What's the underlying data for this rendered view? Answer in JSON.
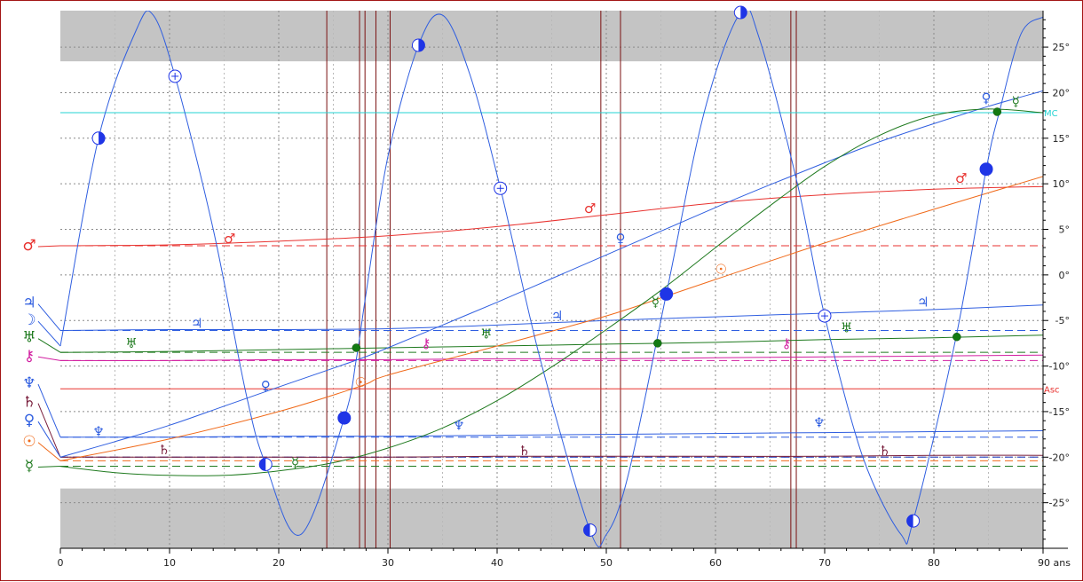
{
  "chart_data": {
    "type": "line",
    "x_unit_label": "ans",
    "xlim": [
      0,
      90
    ],
    "ylim": [
      -30,
      29
    ],
    "x_ticks": [
      0,
      10,
      20,
      30,
      40,
      50,
      60,
      70,
      80,
      90
    ],
    "x_tick_labels": [
      "0",
      "10",
      "20",
      "30",
      "40",
      "50",
      "60",
      "70",
      "80",
      "90 ans"
    ],
    "y_ticks": [
      25,
      20,
      15,
      10,
      5,
      0,
      -5,
      -10,
      -15,
      -20,
      -25
    ],
    "y_tick_labels": [
      "25°",
      "20°",
      "15°",
      "10°",
      "5°",
      "0°",
      "-5°",
      "-10°",
      "-15°",
      "-20°",
      "-25°"
    ],
    "grid": true,
    "shaded_bands": [
      [
        23.44,
        29
      ],
      [
        -30,
        -23.44
      ]
    ],
    "vertical_markers": [
      24.4,
      27.4,
      27.9,
      28.9,
      30.2,
      49.5,
      51.3,
      66.9,
      67.4
    ],
    "reference_lines": [
      {
        "label": "MC",
        "y": 17.8,
        "color": "#26d3d3"
      },
      {
        "label": "Asc",
        "y": -12.5,
        "color": "#e8322f"
      }
    ],
    "left_glyphs": [
      {
        "glyph": "♂",
        "y": 3.3,
        "color": "#e8322f"
      },
      {
        "glyph": "♃",
        "y": -3.0,
        "color": "#2f5ee0"
      },
      {
        "glyph": "☽",
        "y": -4.9,
        "color": "#2f5ee0"
      },
      {
        "glyph": "♅",
        "y": -6.8,
        "color": "#1f7a1f"
      },
      {
        "glyph": "⚷",
        "y": -8.8,
        "color": "#d11fa0"
      },
      {
        "glyph": "♆",
        "y": -11.8,
        "color": "#2f5ee0"
      },
      {
        "glyph": "♄",
        "y": -13.9,
        "color": "#7a1f3d"
      },
      {
        "glyph": "♀",
        "y": -15.9,
        "color": "#2f5ee0"
      },
      {
        "glyph": "☉",
        "y": -18.2,
        "color": "#f06a1a"
      },
      {
        "glyph": "☿",
        "y": -20.9,
        "color": "#1f7a1f"
      }
    ],
    "series": [
      {
        "glyph": "☽",
        "color": "#2f5ee0",
        "type": "lunar-progression",
        "x": [
          0,
          3.5,
          7,
          8.5,
          10.5,
          14,
          17,
          18.8,
          22,
          26,
          27.1,
          28,
          30,
          32.8,
          35,
          37.5,
          40.3,
          44,
          48.5,
          50,
          52,
          55.5,
          59,
          62.3,
          64,
          67.5,
          70,
          73.5,
          77,
          78.1,
          82,
          84.8,
          86,
          88,
          90
        ],
        "y": [
          -7.8,
          15.0,
          27.0,
          28.5,
          21.8,
          5.0,
          -13.0,
          -20.8,
          -28.5,
          -15.7,
          -9.3,
          -2.0,
          13.0,
          25.2,
          28.5,
          22.0,
          9.5,
          -9.5,
          -28.0,
          -28.5,
          -22.0,
          -2.1,
          18.0,
          28.8,
          26.0,
          10.0,
          -4.5,
          -20.0,
          -28.5,
          -27.0,
          -7.0,
          11.6,
          17.9,
          26.5,
          28.3
        ]
      },
      {
        "glyph": "♂",
        "color": "#e8322f",
        "x": [
          0,
          10,
          20,
          30,
          40,
          50,
          60,
          70,
          80,
          90
        ],
        "y": [
          3.2,
          3.3,
          3.7,
          4.3,
          5.3,
          6.6,
          7.9,
          8.8,
          9.4,
          9.7
        ],
        "natal": 3.2
      },
      {
        "glyph": "♃",
        "color": "#2f5ee0",
        "x": [
          0,
          10,
          20,
          30,
          40,
          50,
          60,
          70,
          80,
          90
        ],
        "y": [
          -6.1,
          -6.0,
          -6.0,
          -5.9,
          -5.5,
          -5.0,
          -4.6,
          -4.2,
          -3.8,
          -3.3
        ],
        "natal": -6.1
      },
      {
        "glyph": "♅",
        "color": "#1f7a1f",
        "x": [
          0,
          10,
          20,
          30,
          40,
          50,
          60,
          70,
          80,
          90
        ],
        "y": [
          -8.5,
          -8.4,
          -8.2,
          -8.0,
          -7.8,
          -7.6,
          -7.4,
          -7.1,
          -6.9,
          -6.6
        ],
        "natal": -8.5
      },
      {
        "glyph": "⚷",
        "color": "#d11fa0",
        "x": [
          0,
          10,
          20,
          30,
          40,
          50,
          60,
          70,
          80,
          90
        ],
        "y": [
          -9.4,
          -9.4,
          -9.3,
          -9.3,
          -9.2,
          -9.2,
          -9.1,
          -9.0,
          -8.9,
          -8.8
        ],
        "natal": -9.4
      },
      {
        "glyph": "♆",
        "color": "#2f5ee0",
        "x": [
          0,
          10,
          20,
          30,
          40,
          50,
          60,
          70,
          80,
          90
        ],
        "y": [
          -17.8,
          -17.8,
          -17.7,
          -17.7,
          -17.6,
          -17.5,
          -17.4,
          -17.3,
          -17.2,
          -17.1
        ],
        "natal": -17.8
      },
      {
        "glyph": "♄",
        "color": "#7a1f3d",
        "x": [
          0,
          10,
          20,
          30,
          40,
          50,
          60,
          70,
          80,
          90
        ],
        "y": [
          -20.0,
          -20.0,
          -20.0,
          -20.0,
          -19.9,
          -19.9,
          -19.9,
          -19.9,
          -19.8,
          -19.8
        ],
        "natal": -20.0
      },
      {
        "glyph": "♀",
        "color": "#2f5ee0",
        "x": [
          0,
          5,
          10,
          15,
          20,
          27,
          30,
          35,
          40,
          45,
          50,
          55,
          60,
          65,
          70,
          75,
          80,
          85,
          90
        ],
        "y": [
          -20.0,
          -18.3,
          -16.5,
          -14.4,
          -12.3,
          -9.4,
          -8.0,
          -5.5,
          -3.0,
          -0.4,
          2.2,
          4.8,
          7.4,
          9.9,
          12.3,
          14.6,
          16.6,
          18.5,
          20.2
        ],
        "natal": -20.0
      },
      {
        "glyph": "☉",
        "color": "#f06a1a",
        "x": [
          0,
          10,
          20,
          27.5,
          30,
          40,
          50,
          55.3,
          60,
          70,
          80,
          90
        ],
        "y": [
          -20.4,
          -18.0,
          -15.0,
          -12.2,
          -11.0,
          -7.8,
          -4.5,
          -2.4,
          -0.5,
          3.5,
          7.2,
          10.8
        ],
        "natal": -20.4
      },
      {
        "glyph": "☿",
        "color": "#1f7a1f",
        "x": [
          0,
          5,
          10,
          15,
          20,
          25,
          30,
          35,
          40,
          45,
          50,
          55,
          60,
          65,
          70,
          75,
          80,
          85,
          90
        ],
        "y": [
          -21.0,
          -21.7,
          -22.0,
          -22.0,
          -21.5,
          -20.6,
          -19.0,
          -16.8,
          -13.8,
          -10.1,
          -6.0,
          -1.7,
          3.0,
          7.6,
          11.9,
          15.3,
          17.5,
          18.2,
          17.8
        ],
        "natal": -21.0
      }
    ],
    "curve_glyphs": [
      {
        "glyph": "♂",
        "x": 15.5,
        "y": 4.0,
        "color": "#e8322f"
      },
      {
        "glyph": "♂",
        "x": 48.5,
        "y": 7.3,
        "color": "#e8322f"
      },
      {
        "glyph": "♂",
        "x": 82.5,
        "y": 10.6,
        "color": "#e8322f"
      },
      {
        "glyph": "♃",
        "x": 12.5,
        "y": -5.3,
        "color": "#2f5ee0"
      },
      {
        "glyph": "♃",
        "x": 45.5,
        "y": -4.5,
        "color": "#2f5ee0"
      },
      {
        "glyph": "♃",
        "x": 79,
        "y": -3.0,
        "color": "#2f5ee0"
      },
      {
        "glyph": "♅",
        "x": 6.5,
        "y": -7.5,
        "color": "#1f7a1f"
      },
      {
        "glyph": "♅",
        "x": 39,
        "y": -6.5,
        "color": "#1f7a1f"
      },
      {
        "glyph": "♅",
        "x": 72,
        "y": -5.8,
        "color": "#1f7a1f"
      },
      {
        "glyph": "⚷",
        "x": 33.5,
        "y": -7.5,
        "color": "#d11fa0"
      },
      {
        "glyph": "⚷",
        "x": 66.5,
        "y": -7.5,
        "color": "#d11fa0"
      },
      {
        "glyph": "♆",
        "x": 3.5,
        "y": -17.2,
        "color": "#2f5ee0"
      },
      {
        "glyph": "♆",
        "x": 36.5,
        "y": -16.5,
        "color": "#2f5ee0"
      },
      {
        "glyph": "♆",
        "x": 69.5,
        "y": -16.2,
        "color": "#2f5ee0"
      },
      {
        "glyph": "♄",
        "x": 9.5,
        "y": -19.2,
        "color": "#7a1f3d"
      },
      {
        "glyph": "♄",
        "x": 42.5,
        "y": -19.3,
        "color": "#7a1f3d"
      },
      {
        "glyph": "♄",
        "x": 75.5,
        "y": -19.3,
        "color": "#7a1f3d"
      },
      {
        "glyph": "♀",
        "x": 18.8,
        "y": -12.2,
        "color": "#2f5ee0"
      },
      {
        "glyph": "♀",
        "x": 51.3,
        "y": 4.0,
        "color": "#2f5ee0"
      },
      {
        "glyph": "♀",
        "x": 84.8,
        "y": 19.4,
        "color": "#2f5ee0"
      },
      {
        "glyph": "☉",
        "x": 27.5,
        "y": -11.8,
        "color": "#f06a1a"
      },
      {
        "glyph": "☉",
        "x": 60.5,
        "y": 0.6,
        "color": "#f06a1a"
      },
      {
        "glyph": "☿",
        "x": 21.5,
        "y": -20.6,
        "color": "#1f7a1f"
      },
      {
        "glyph": "☿",
        "x": 54.5,
        "y": -3.0,
        "color": "#1f7a1f"
      },
      {
        "glyph": "☿",
        "x": 87.5,
        "y": 19.0,
        "color": "#1f7a1f"
      }
    ],
    "moon_phases": [
      {
        "x": 3.5,
        "y": 15.0,
        "phase": "first-quarter"
      },
      {
        "x": 10.5,
        "y": 21.8,
        "phase": "gibbous-waxing"
      },
      {
        "x": 18.8,
        "y": -20.8,
        "phase": "last-quarter"
      },
      {
        "x": 26.0,
        "y": -15.7,
        "phase": "new"
      },
      {
        "x": 32.8,
        "y": 25.2,
        "phase": "first-quarter"
      },
      {
        "x": 40.3,
        "y": 9.5,
        "phase": "gibbous-waxing"
      },
      {
        "x": 48.5,
        "y": -28.0,
        "phase": "last-quarter"
      },
      {
        "x": 55.5,
        "y": -2.1,
        "phase": "new"
      },
      {
        "x": 62.3,
        "y": 28.8,
        "phase": "first-quarter"
      },
      {
        "x": 70.0,
        "y": -4.5,
        "phase": "gibbous-waxing"
      },
      {
        "x": 78.1,
        "y": -27.0,
        "phase": "last-quarter"
      },
      {
        "x": 84.8,
        "y": 11.6,
        "phase": "new"
      }
    ],
    "green_dots": [
      {
        "x": 27.1,
        "y": -8.0
      },
      {
        "x": 54.7,
        "y": -7.5
      },
      {
        "x": 82.1,
        "y": -6.8
      },
      {
        "x": 85.8,
        "y": 17.9
      }
    ]
  }
}
